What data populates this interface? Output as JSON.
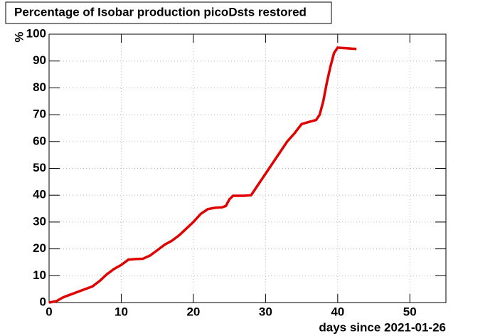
{
  "chart_data": {
    "type": "line",
    "title": "Percentage of Isobar production picoDsts restored",
    "x_label": "days since 2021-01-26",
    "y_label": "%",
    "series": [
      {
        "color": "#e00000",
        "x": [
          0,
          1,
          2,
          3,
          4,
          5,
          6,
          7,
          8,
          9,
          10,
          11,
          12,
          13,
          14,
          15,
          16,
          17,
          18,
          19,
          20,
          21,
          22,
          23,
          24,
          24.5,
          25,
          25.5,
          27,
          28,
          29,
          30,
          31,
          32,
          33,
          34,
          35,
          36,
          37,
          37.5,
          38,
          38.5,
          39,
          39.5,
          40,
          41,
          42,
          42.6
        ],
        "values": [
          0,
          0.5,
          2,
          3,
          4,
          5,
          6,
          8,
          10.5,
          12.5,
          14,
          16,
          16.2,
          16.3,
          17.5,
          19.5,
          21.5,
          23,
          25,
          27.5,
          30,
          33,
          34.8,
          35.3,
          35.5,
          36,
          38.5,
          39.8,
          39.8,
          40,
          44,
          48,
          52,
          56,
          60,
          63,
          66.5,
          67.3,
          68,
          70,
          75,
          82,
          88,
          93,
          95,
          94.8,
          94.6,
          94.5
        ]
      }
    ],
    "xlim": [
      0,
      55
    ],
    "xticks": [
      0,
      10,
      20,
      30,
      40,
      50
    ],
    "ylim": [
      0,
      100
    ],
    "yticks": [
      0,
      10,
      20,
      30,
      40,
      50,
      60,
      70,
      80,
      90,
      100
    ],
    "grid": true
  }
}
